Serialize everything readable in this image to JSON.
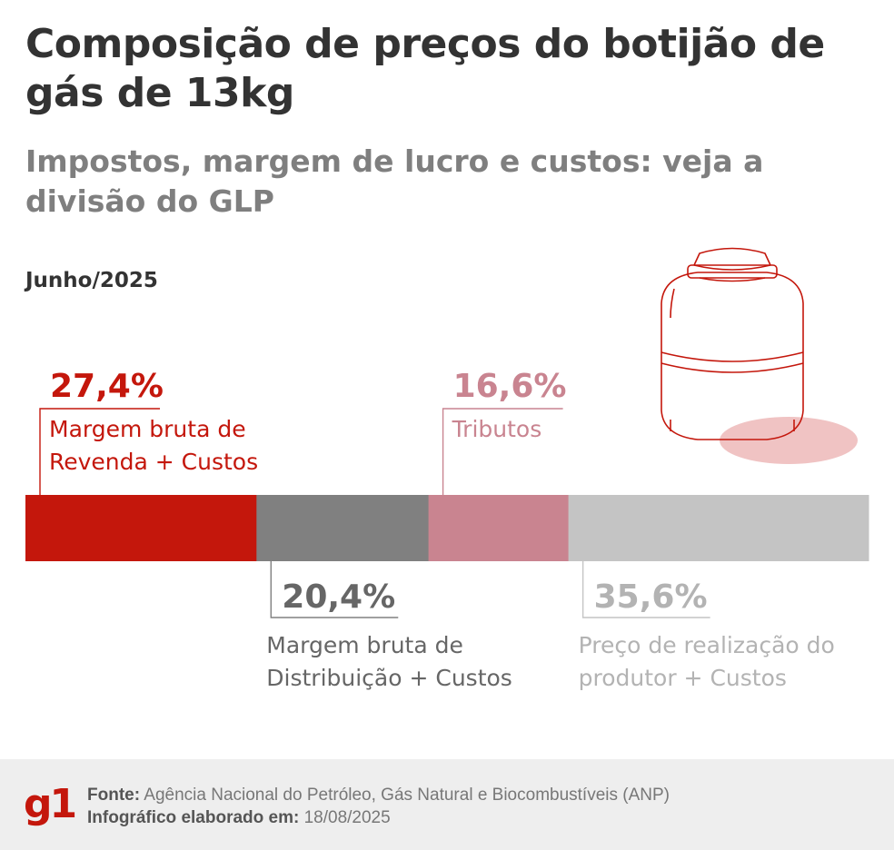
{
  "header": {
    "title": "Composição de preços do botijão de gás de 13kg",
    "subtitle": "Impostos, margem de lucro e custos: veja a divisão do GLP",
    "date": "Junho/2025"
  },
  "chart_data": {
    "type": "bar",
    "orientation": "horizontal-stacked",
    "unit": "%",
    "segments": [
      {
        "label": "Margem bruta de Revenda + Custos",
        "value": 27.4,
        "value_label": "27,4%",
        "color": "#c4170c",
        "callout": "above"
      },
      {
        "label": "Margem bruta de Distribuição + Custos",
        "value": 20.4,
        "value_label": "20,4%",
        "color": "#808080",
        "callout": "below"
      },
      {
        "label": "Tributos",
        "value": 16.6,
        "value_label": "16,6%",
        "color": "#c98490",
        "callout": "above"
      },
      {
        "label": "Preço de realização do produtor + Custos",
        "value": 35.6,
        "value_label": "35,6%",
        "color": "#c4c4c4",
        "callout": "below"
      }
    ],
    "total": 100
  },
  "illustration": {
    "icon": "gas-cylinder-icon",
    "color": "#c4170c"
  },
  "footer": {
    "logo": "g1",
    "source_label": "Fonte:",
    "source_text": "Agência Nacional do Petróleo, Gás Natural e Biocombustíveis (ANP)",
    "made_label": "Infográfico elaborado em:",
    "made_date": "18/08/2025"
  }
}
